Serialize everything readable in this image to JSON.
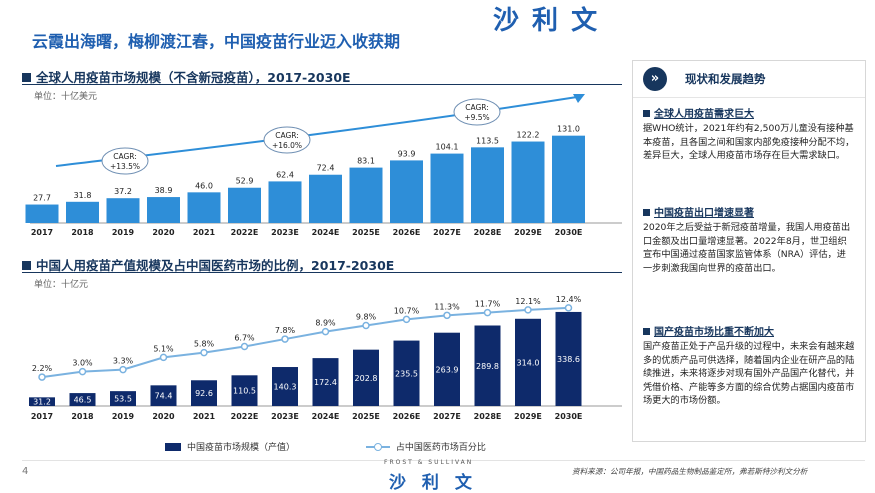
{
  "brand": {
    "name": "沙 利 文",
    "sub": "FROST & SULLIVAN"
  },
  "page_title": "云霞出海曙，梅柳渡江春，中国疫苗行业迈入收获期",
  "page_number": "4",
  "source_note": "资料来源：公司年报，中国药品生物制品鉴定所，弗若斯特沙利文分析",
  "colors": {
    "title": "#1f5fb0",
    "bar_light": "#2e8ed8",
    "bar_dark": "#0e2a6b",
    "line": "#7ab2e0",
    "navy": "#17365d"
  },
  "chart_data": [
    {
      "type": "bar",
      "title": "全球人用疫苗市场规模（不含新冠疫苗），2017-2030E",
      "unit": "单位：十亿美元",
      "categories": [
        "2017",
        "2018",
        "2019",
        "2020",
        "2021",
        "2022E",
        "2023E",
        "2024E",
        "2025E",
        "2026E",
        "2027E",
        "2028E",
        "2029E",
        "2030E"
      ],
      "values": [
        27.7,
        31.8,
        37.2,
        38.9,
        46.0,
        52.9,
        62.4,
        72.4,
        83.1,
        93.9,
        104.1,
        113.5,
        122.2,
        131.0
      ],
      "value_labels": [
        "27.7",
        "31.8",
        "37.2",
        "38.9",
        "46.0",
        "52.9",
        "62.4",
        "72.4",
        "83.1",
        "93.9",
        "104.1",
        "113.5",
        "122.2",
        "131.0"
      ],
      "cagr": [
        {
          "label": "CAGR:",
          "value": "+13.5%",
          "period": "2017-2021"
        },
        {
          "label": "CAGR:",
          "value": "+16.0%",
          "period": "2021-2025E"
        },
        {
          "label": "CAGR:",
          "value": "+9.5%",
          "period": "2025E-2030E"
        }
      ],
      "ylim": [
        0,
        150
      ]
    },
    {
      "type": "bar+line",
      "title": "中国人用疫苗产值规模及占中国医药市场的比例，2017-2030E",
      "unit": "单位：十亿元",
      "categories": [
        "2017",
        "2018",
        "2019",
        "2020",
        "2021",
        "2022E",
        "2023E",
        "2024E",
        "2025E",
        "2026E",
        "2027E",
        "2028E",
        "2029E",
        "2030E"
      ],
      "series": [
        {
          "name": "中国疫苗市场规模（产值）",
          "kind": "bar",
          "values": [
            31.2,
            46.5,
            53.5,
            74.4,
            92.6,
            110.5,
            140.3,
            172.4,
            202.8,
            235.5,
            263.9,
            289.8,
            314.0,
            338.6
          ],
          "labels": [
            "31.2",
            "46.5",
            "53.5",
            "74.4",
            "92.6",
            "110.5",
            "140.3",
            "172.4",
            "202.8",
            "235.5",
            "263.9",
            "289.8",
            "314.0",
            "338.6"
          ]
        },
        {
          "name": "占中国医药市场百分比",
          "kind": "line",
          "values": [
            2.2,
            3.0,
            3.3,
            5.1,
            5.8,
            6.7,
            7.8,
            8.9,
            9.8,
            10.7,
            11.3,
            11.7,
            12.1,
            12.4
          ],
          "labels": [
            "2.2%",
            "3.0%",
            "3.3%",
            "5.1%",
            "5.8%",
            "6.7%",
            "7.8%",
            "8.9%",
            "9.8%",
            "10.7%",
            "11.3%",
            "11.7%",
            "12.1%",
            "12.4%"
          ]
        }
      ],
      "ylim_bar": [
        0,
        360
      ],
      "ylim_line": [
        0,
        14
      ]
    }
  ],
  "panel": {
    "title": "现状和发展趋势",
    "icon": "»",
    "items": [
      {
        "heading": "全球人用疫苗需求巨大",
        "body": "据WHO统计，2021年约有2,500万儿童没有接种基本疫苗，且各国之间和国家内部免疫接种分配不均，差异巨大，全球人用疫苗市场存在巨大需求缺口。"
      },
      {
        "heading": "中国疫苗出口增速显著",
        "body": "2020年之后受益于新冠疫苗增量，我国人用疫苗出口金额及出口量增速显著。2022年8月，世卫组织宣布中国通过疫苗国家监管体系（NRA）评估，进一步刺激我国向世界的疫苗出口。"
      },
      {
        "heading": "国产疫苗市场比重不断加大",
        "body": "国产疫苗正处于产品升级的过程中，未来会有越来越多的优质产品可供选择，随着国内企业在研产品的陆续推进，未来将逐步对现有国外产品国产化替代，并凭借价格、产能等多方面的综合优势占据国内疫苗市场更大的市场份额。"
      }
    ]
  }
}
